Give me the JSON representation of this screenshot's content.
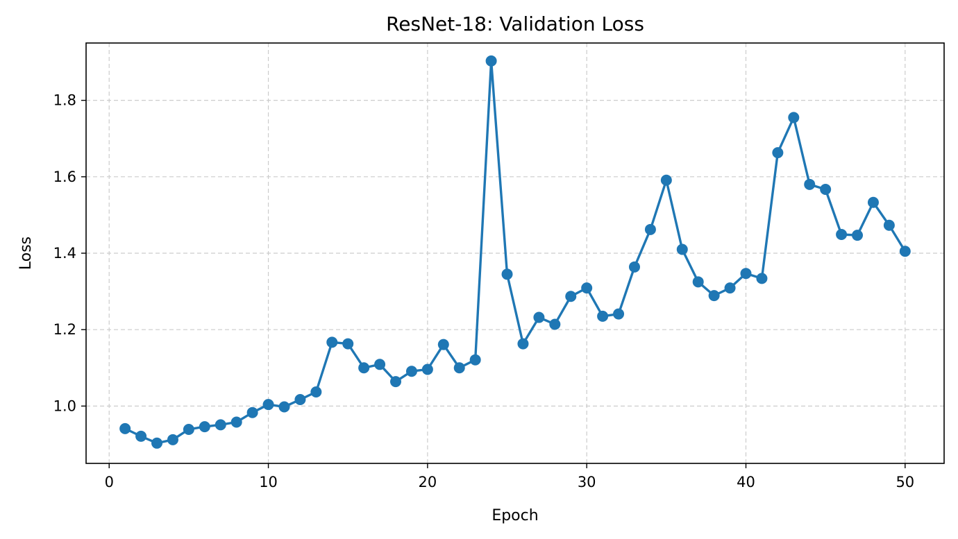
{
  "chart_data": {
    "type": "line",
    "title": "ResNet-18: Validation Loss",
    "xlabel": "Epoch",
    "ylabel": "Loss",
    "xlim": [
      -1.45,
      52.45
    ],
    "ylim": [
      0.85,
      1.95
    ],
    "x_ticks": [
      0,
      10,
      20,
      30,
      40,
      50
    ],
    "y_ticks": [
      1.0,
      1.2,
      1.4,
      1.6,
      1.8
    ],
    "y_tick_labels": [
      "1.0",
      "1.2",
      "1.4",
      "1.6",
      "1.8"
    ],
    "grid": true,
    "legend": false,
    "series": [
      {
        "color": "#1f77b4",
        "marker": "circle",
        "x": [
          1,
          2,
          3,
          4,
          5,
          6,
          7,
          8,
          9,
          10,
          11,
          12,
          13,
          14,
          15,
          16,
          17,
          18,
          19,
          20,
          21,
          22,
          23,
          24,
          25,
          26,
          27,
          28,
          29,
          30,
          31,
          32,
          33,
          34,
          35,
          36,
          37,
          38,
          39,
          40,
          41,
          42,
          43,
          44,
          45,
          46,
          47,
          48,
          49,
          50
        ],
        "values": [
          0.941,
          0.921,
          0.903,
          0.912,
          0.939,
          0.946,
          0.951,
          0.958,
          0.983,
          1.004,
          0.998,
          1.017,
          1.037,
          1.167,
          1.163,
          1.1,
          1.109,
          1.064,
          1.091,
          1.096,
          1.161,
          1.1,
          1.121,
          1.903,
          1.345,
          1.163,
          1.232,
          1.214,
          1.287,
          1.309,
          1.235,
          1.241,
          1.364,
          1.462,
          1.591,
          1.41,
          1.325,
          1.289,
          1.309,
          1.347,
          1.334,
          1.663,
          1.755,
          1.58,
          1.567,
          1.449,
          1.447,
          1.533,
          1.473,
          1.405
        ]
      }
    ]
  }
}
